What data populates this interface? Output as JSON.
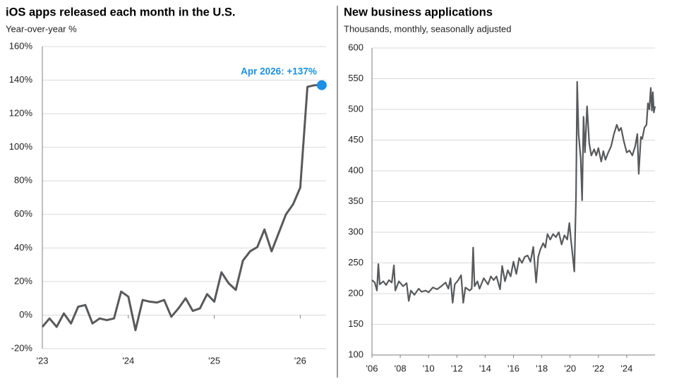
{
  "chart_data": [
    {
      "type": "line",
      "title": "iOS apps released each month in the U.S.",
      "subtitle": "Year-over-year %",
      "categories": [
        "'23",
        null,
        null,
        null,
        null,
        null,
        null,
        null,
        null,
        null,
        null,
        null,
        "'24",
        null,
        null,
        null,
        null,
        null,
        null,
        null,
        null,
        null,
        null,
        null,
        "'25",
        null,
        null,
        null,
        null,
        null,
        null,
        null,
        null,
        null,
        null,
        null,
        "'26",
        null,
        null,
        null
      ],
      "values": [
        -7,
        -2,
        -7,
        1,
        -5,
        5,
        6,
        -5,
        -2,
        -3,
        -2,
        14,
        11,
        -9,
        9,
        8,
        7.5,
        9,
        -1,
        4,
        10,
        2.5,
        4,
        12.5,
        8,
        25.5,
        19,
        15,
        32.5,
        38,
        40.5,
        51,
        38,
        49,
        60,
        66,
        76,
        136,
        137,
        137
      ],
      "color": "#58595b",
      "ylim": [
        -20,
        160
      ],
      "yticks": [
        {
          "value": -20,
          "label": "-20%"
        },
        {
          "value": 0,
          "label": "0%"
        },
        {
          "value": 20,
          "label": "20%"
        },
        {
          "value": 40,
          "label": "40%"
        },
        {
          "value": 60,
          "label": "60%"
        },
        {
          "value": 80,
          "label": "80%"
        },
        {
          "value": 100,
          "label": "100%"
        },
        {
          "value": 120,
          "label": "120%"
        },
        {
          "value": 140,
          "label": "140%"
        },
        {
          "value": 160,
          "label": "160%"
        }
      ],
      "grid": true,
      "annotation": {
        "text": "Apr 2026: +137%",
        "color": "#1a8fe3"
      }
    },
    {
      "type": "line",
      "title": "New business applications",
      "subtitle": "Thousands, monthly, seasonally adjusted",
      "x": [
        2006.0,
        2006.2,
        2006.35,
        2006.45,
        2006.55,
        2006.8,
        2007.0,
        2007.2,
        2007.4,
        2007.55,
        2007.65,
        2007.9,
        2008.2,
        2008.45,
        2008.6,
        2008.75,
        2009.0,
        2009.3,
        2009.5,
        2009.8,
        2010.0,
        2010.3,
        2010.6,
        2010.9,
        2011.2,
        2011.4,
        2011.55,
        2011.7,
        2011.85,
        2012.1,
        2012.3,
        2012.45,
        2012.6,
        2012.9,
        2013.05,
        2013.15,
        2013.25,
        2013.45,
        2013.6,
        2013.9,
        2014.2,
        2014.4,
        2014.6,
        2014.8,
        2015.05,
        2015.2,
        2015.4,
        2015.6,
        2015.8,
        2016.0,
        2016.2,
        2016.4,
        2016.6,
        2016.8,
        2017.0,
        2017.2,
        2017.4,
        2017.6,
        2017.75,
        2017.9,
        2018.1,
        2018.25,
        2018.4,
        2018.6,
        2018.8,
        2019.0,
        2019.2,
        2019.4,
        2019.6,
        2019.8,
        2019.95,
        2020.05,
        2020.2,
        2020.3,
        2020.42,
        2020.5,
        2020.6,
        2020.75,
        2020.85,
        2020.95,
        2021.05,
        2021.2,
        2021.35,
        2021.5,
        2021.7,
        2021.85,
        2022.0,
        2022.2,
        2022.35,
        2022.5,
        2022.7,
        2022.9,
        2023.1,
        2023.3,
        2023.45,
        2023.6,
        2023.8,
        2024.0,
        2024.2,
        2024.4,
        2024.6,
        2024.75,
        2024.85,
        2025.0,
        2025.1,
        2025.25,
        2025.4,
        2025.5,
        2025.6,
        2025.7,
        2025.78,
        2025.85,
        2025.92,
        2026.0
      ],
      "values": [
        222,
        218,
        205,
        248,
        215,
        220,
        214,
        222,
        218,
        246,
        205,
        220,
        212,
        217,
        188,
        205,
        198,
        208,
        203,
        205,
        202,
        210,
        207,
        212,
        218,
        208,
        225,
        185,
        215,
        222,
        230,
        185,
        210,
        205,
        208,
        275,
        212,
        220,
        208,
        225,
        215,
        228,
        222,
        228,
        207,
        245,
        220,
        238,
        228,
        252,
        232,
        258,
        250,
        260,
        262,
        252,
        276,
        218,
        260,
        272,
        282,
        275,
        297,
        288,
        297,
        292,
        300,
        280,
        295,
        288,
        315,
        290,
        258,
        236,
        360,
        545,
        460,
        420,
        352,
        488,
        430,
        505,
        445,
        425,
        435,
        425,
        437,
        415,
        432,
        418,
        430,
        440,
        460,
        475,
        465,
        470,
        448,
        430,
        433,
        425,
        440,
        460,
        395,
        455,
        452,
        470,
        475,
        510,
        500,
        535,
        498,
        528,
        495,
        505
      ],
      "color": "#58595b",
      "xlim": [
        2006,
        2026
      ],
      "xticks": [
        {
          "value": 2006,
          "label": "'06"
        },
        {
          "value": 2008,
          "label": "'08"
        },
        {
          "value": 2010,
          "label": "'10"
        },
        {
          "value": 2012,
          "label": "'12"
        },
        {
          "value": 2014,
          "label": "'14"
        },
        {
          "value": 2016,
          "label": "'16"
        },
        {
          "value": 2018,
          "label": "'18"
        },
        {
          "value": 2020,
          "label": "'20"
        },
        {
          "value": 2022,
          "label": "'22"
        },
        {
          "value": 2024,
          "label": "'24"
        }
      ],
      "ylim": [
        100,
        600
      ],
      "yticks": [
        100,
        150,
        200,
        250,
        300,
        350,
        400,
        450,
        500,
        550,
        600
      ],
      "grid": true
    }
  ]
}
